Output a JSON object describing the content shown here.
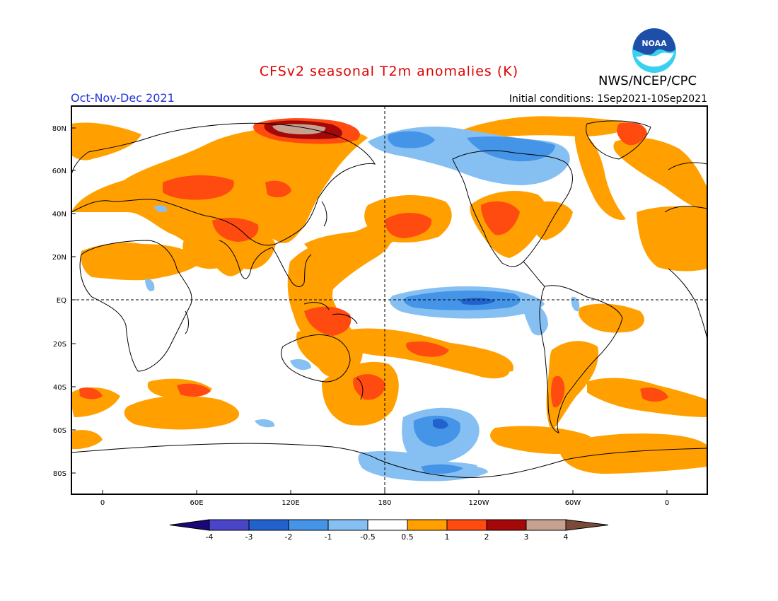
{
  "title": "CFSv2 seasonal T2m anomalies (K)",
  "organization": "NWS/NCEP/CPC",
  "logo_text": "NOAA",
  "season": "Oct-Nov-Dec 2021",
  "initial_conditions": "Initial conditions: 1Sep2021-10Sep2021",
  "colors": {
    "title": "#e00000",
    "season": "#2233dd",
    "land": "#000000",
    "background": "#ffffff",
    "logo_blue": "#1d4fa8",
    "logo_cyan": "#3ad0f0"
  },
  "axes": {
    "lat_labels": [
      "80N",
      "60N",
      "40N",
      "20N",
      "EQ",
      "20S",
      "40S",
      "60S",
      "80S"
    ],
    "lon_labels": [
      "0",
      "60E",
      "120E",
      "180",
      "120W",
      "60W",
      "0"
    ]
  },
  "colorbar": {
    "bins": [
      {
        "label": "<-4",
        "color": "#1a0878"
      },
      {
        "label": "-4 to -3",
        "color": "#4a44c8"
      },
      {
        "label": "-3 to -2",
        "color": "#2262cc"
      },
      {
        "label": "-2 to -1",
        "color": "#4494e8"
      },
      {
        "label": "-1 to -0.5",
        "color": "#86c0f2"
      },
      {
        "label": "-0.5 to 0.5",
        "color": "#ffffff"
      },
      {
        "label": "0.5 to 1",
        "color": "#ffa000"
      },
      {
        "label": "1 to 2",
        "color": "#ff4a10"
      },
      {
        "label": "2 to 3",
        "color": "#a40808"
      },
      {
        "label": "3 to 4",
        "color": "#c8a090"
      },
      {
        "label": ">4",
        "color": "#7a4a38"
      }
    ],
    "tick_labels": [
      "-4",
      "-3",
      "-2",
      "-1",
      "-0.5",
      "0.5",
      "1",
      "2",
      "3",
      "4"
    ]
  },
  "anomaly_regions": {
    "warm_0.5_1": [
      "Eurasia and northern Siberia",
      "Central Asia and Middle East",
      "Sahara and West Africa",
      "Southern Africa and Southern Ocean band",
      "Maritime Continent and western Pacific",
      "Australia and South Pacific (SPCZ)",
      "North Pacific",
      "Western United States and Mexico",
      "Eastern Canada and Greenland",
      "Arctic Ocean",
      "Eastern Brazil and South Atlantic",
      "Southern South America",
      "Antarctic Peninsula region"
    ],
    "warm_1_2": [
      "Kara Sea / northern Siberia",
      "West Siberia",
      "Tibetan Plateau",
      "Central North Pacific",
      "Southwestern United States",
      "Indonesia / Maritime Continent",
      "South Pacific",
      "East of New Zealand",
      "Southern Indian Ocean",
      "Greenland coast",
      "Patagonia"
    ],
    "warm_2_3": [
      "Kara Sea"
    ],
    "warm_3_4": [
      "Kara Sea core"
    ],
    "cold_0.5_1": [
      "Bering Sea and Alaska",
      "Central and northern Canada",
      "Equatorial central Pacific",
      "Southeast Pacific / Southern Ocean",
      "Ross Sea / Antarctica margin",
      "East Africa",
      "Western Australia",
      "Caspian Sea"
    ],
    "cold_1_2": [
      "Equatorial central-eastern Pacific (La Nina)",
      "Bellingshausen / Amundsen Sea",
      "Canadian Arctic",
      "Chukchi Sea",
      "Ross Sea"
    ],
    "cold_2_3": [
      "Amundsen Sea core",
      "Equatorial Pacific core"
    ]
  }
}
